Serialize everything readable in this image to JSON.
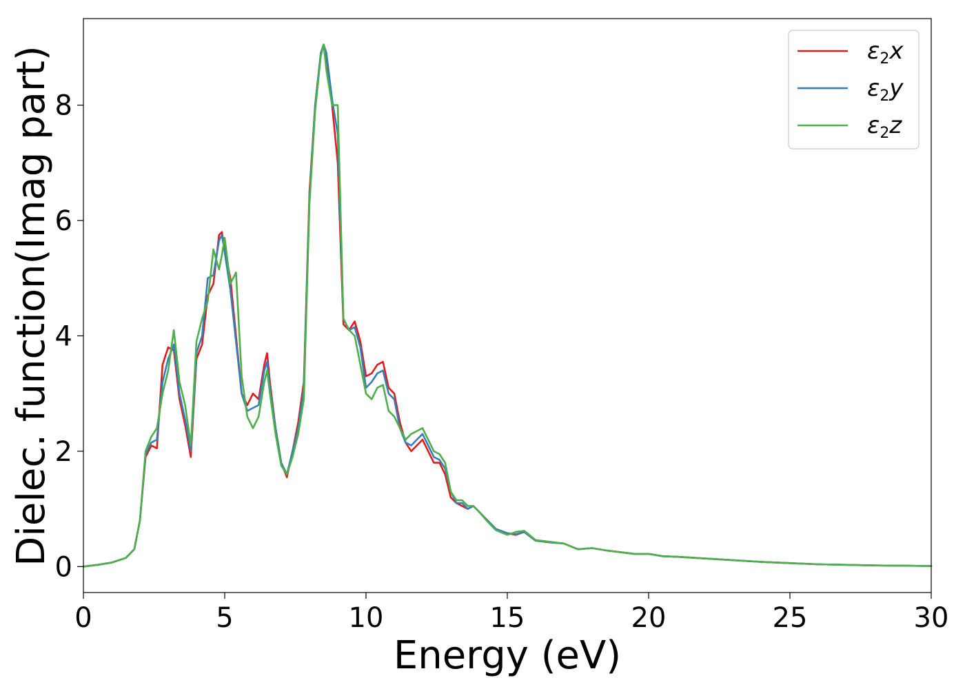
{
  "chart_data": {
    "type": "line",
    "xlabel": "Energy (eV)",
    "ylabel": "Dielec. function(Imag part)",
    "xlim": [
      0,
      30
    ],
    "ylim": [
      -0.45,
      9.5
    ],
    "xticks": [
      0,
      5,
      10,
      15,
      20,
      25,
      30
    ],
    "yticks": [
      0,
      2,
      4,
      6,
      8
    ],
    "grid": false,
    "legend": "top-right",
    "series": [
      {
        "name": "ε2x",
        "legend_base": "ε",
        "legend_sub": "2",
        "legend_var": "x",
        "color": "#e41a1c",
        "x": [
          0,
          0.5,
          1.0,
          1.5,
          1.8,
          2.0,
          2.2,
          2.4,
          2.6,
          2.8,
          3.0,
          3.2,
          3.4,
          3.6,
          3.8,
          4.0,
          4.2,
          4.4,
          4.6,
          4.8,
          4.9,
          5.0,
          5.2,
          5.4,
          5.6,
          5.8,
          6.0,
          6.2,
          6.4,
          6.5,
          6.6,
          6.8,
          7.0,
          7.2,
          7.4,
          7.6,
          7.8,
          8.0,
          8.2,
          8.4,
          8.5,
          8.6,
          8.8,
          9.0,
          9.2,
          9.4,
          9.6,
          9.8,
          10.0,
          10.2,
          10.4,
          10.6,
          10.8,
          11.0,
          11.2,
          11.4,
          11.6,
          11.8,
          12.0,
          12.2,
          12.4,
          12.6,
          12.8,
          13.0,
          13.2,
          13.4,
          13.6,
          13.8,
          14.0,
          14.3,
          14.6,
          15.0,
          15.3,
          15.6,
          16.0,
          16.5,
          17.0,
          17.5,
          18.0,
          18.5,
          19.0,
          19.5,
          20.0,
          20.5,
          21.0,
          22.0,
          23.0,
          24.0,
          25.0,
          26.0,
          27.0,
          28.0,
          29.0,
          30.0
        ],
        "values": [
          0.0,
          0.03,
          0.07,
          0.15,
          0.3,
          0.8,
          1.9,
          2.1,
          2.05,
          3.5,
          3.8,
          3.75,
          2.9,
          2.45,
          1.9,
          3.6,
          3.85,
          4.7,
          4.9,
          5.75,
          5.8,
          5.5,
          5.0,
          4.0,
          3.0,
          2.8,
          3.0,
          2.9,
          3.5,
          3.7,
          3.2,
          2.4,
          1.8,
          1.55,
          2.0,
          2.5,
          3.2,
          6.5,
          8.0,
          8.9,
          9.05,
          8.8,
          8.0,
          7.0,
          4.2,
          4.1,
          4.25,
          3.9,
          3.3,
          3.35,
          3.5,
          3.55,
          3.1,
          3.0,
          2.5,
          2.15,
          2.0,
          2.1,
          2.2,
          2.0,
          1.8,
          1.8,
          1.6,
          1.2,
          1.1,
          1.05,
          1.0,
          1.05,
          0.95,
          0.8,
          0.65,
          0.58,
          0.55,
          0.6,
          0.45,
          0.42,
          0.4,
          0.3,
          0.32,
          0.28,
          0.25,
          0.22,
          0.22,
          0.18,
          0.17,
          0.14,
          0.11,
          0.08,
          0.06,
          0.04,
          0.03,
          0.02,
          0.015,
          0.01
        ]
      },
      {
        "name": "ε2y",
        "legend_base": "ε",
        "legend_sub": "2",
        "legend_var": "y",
        "color": "#377eb8",
        "x": [
          0,
          0.5,
          1.0,
          1.5,
          1.8,
          2.0,
          2.2,
          2.4,
          2.6,
          2.8,
          3.0,
          3.2,
          3.4,
          3.6,
          3.8,
          4.0,
          4.2,
          4.4,
          4.6,
          4.8,
          4.9,
          5.0,
          5.2,
          5.4,
          5.6,
          5.8,
          6.0,
          6.2,
          6.4,
          6.5,
          6.6,
          6.8,
          7.0,
          7.2,
          7.4,
          7.6,
          7.8,
          8.0,
          8.2,
          8.4,
          8.5,
          8.6,
          8.8,
          9.0,
          9.2,
          9.4,
          9.6,
          9.8,
          10.0,
          10.2,
          10.4,
          10.6,
          10.8,
          11.0,
          11.2,
          11.4,
          11.6,
          11.8,
          12.0,
          12.2,
          12.4,
          12.6,
          12.8,
          13.0,
          13.2,
          13.4,
          13.6,
          13.8,
          14.0,
          14.3,
          14.6,
          15.0,
          15.3,
          15.6,
          16.0,
          16.5,
          17.0,
          17.5,
          18.0,
          18.5,
          19.0,
          19.5,
          20.0,
          20.5,
          21.0,
          22.0,
          23.0,
          24.0,
          25.0,
          26.0,
          27.0,
          28.0,
          29.0,
          30.0
        ],
        "values": [
          0.0,
          0.03,
          0.07,
          0.15,
          0.3,
          0.8,
          1.95,
          2.15,
          2.2,
          3.2,
          3.6,
          3.85,
          3.0,
          2.55,
          2.0,
          3.7,
          4.0,
          5.0,
          5.05,
          5.65,
          5.75,
          5.45,
          4.8,
          3.9,
          3.0,
          2.7,
          2.75,
          2.8,
          3.4,
          3.55,
          3.1,
          2.4,
          1.8,
          1.6,
          2.0,
          2.4,
          3.1,
          6.4,
          8.0,
          8.9,
          9.05,
          8.9,
          8.1,
          7.5,
          4.3,
          4.1,
          4.15,
          3.8,
          3.1,
          3.2,
          3.35,
          3.4,
          3.0,
          2.9,
          2.4,
          2.15,
          2.1,
          2.2,
          2.3,
          2.1,
          1.9,
          1.85,
          1.7,
          1.3,
          1.1,
          1.1,
          1.0,
          1.05,
          0.95,
          0.8,
          0.65,
          0.58,
          0.56,
          0.6,
          0.45,
          0.42,
          0.4,
          0.3,
          0.32,
          0.28,
          0.25,
          0.22,
          0.22,
          0.18,
          0.17,
          0.14,
          0.11,
          0.08,
          0.06,
          0.04,
          0.03,
          0.02,
          0.015,
          0.01
        ]
      },
      {
        "name": "ε2z",
        "legend_base": "ε",
        "legend_sub": "2",
        "legend_var": "z",
        "color": "#4daf4a",
        "x": [
          0,
          0.5,
          1.0,
          1.5,
          1.8,
          2.0,
          2.2,
          2.4,
          2.6,
          2.8,
          3.0,
          3.2,
          3.4,
          3.6,
          3.8,
          4.0,
          4.2,
          4.4,
          4.6,
          4.8,
          4.9,
          5.0,
          5.2,
          5.4,
          5.6,
          5.8,
          6.0,
          6.2,
          6.4,
          6.5,
          6.6,
          6.8,
          7.0,
          7.2,
          7.4,
          7.6,
          7.8,
          8.0,
          8.2,
          8.4,
          8.5,
          8.6,
          8.8,
          9.0,
          9.2,
          9.4,
          9.6,
          9.8,
          10.0,
          10.2,
          10.4,
          10.6,
          10.8,
          11.0,
          11.2,
          11.4,
          11.6,
          11.8,
          12.0,
          12.2,
          12.4,
          12.6,
          12.8,
          13.0,
          13.2,
          13.4,
          13.6,
          13.8,
          14.0,
          14.3,
          14.6,
          15.0,
          15.3,
          15.6,
          16.0,
          16.5,
          17.0,
          17.5,
          18.0,
          18.5,
          19.0,
          19.5,
          20.0,
          20.5,
          21.0,
          22.0,
          23.0,
          24.0,
          25.0,
          26.0,
          27.0,
          28.0,
          29.0,
          30.0
        ],
        "values": [
          0.0,
          0.03,
          0.07,
          0.15,
          0.3,
          0.8,
          2.0,
          2.25,
          2.4,
          3.0,
          3.4,
          4.1,
          3.2,
          2.8,
          2.1,
          3.9,
          4.3,
          4.6,
          5.5,
          5.15,
          5.4,
          5.7,
          4.9,
          5.1,
          3.3,
          2.6,
          2.4,
          2.6,
          3.2,
          3.4,
          3.0,
          2.3,
          1.75,
          1.6,
          1.9,
          2.3,
          2.9,
          6.3,
          7.9,
          8.85,
          9.05,
          8.6,
          8.0,
          8.0,
          4.3,
          4.1,
          4.0,
          3.5,
          3.0,
          2.9,
          3.1,
          3.15,
          2.7,
          2.6,
          2.4,
          2.2,
          2.3,
          2.35,
          2.4,
          2.2,
          2.0,
          1.95,
          1.8,
          1.3,
          1.15,
          1.15,
          1.05,
          1.05,
          0.95,
          0.78,
          0.63,
          0.55,
          0.6,
          0.62,
          0.46,
          0.43,
          0.4,
          0.3,
          0.32,
          0.28,
          0.25,
          0.22,
          0.22,
          0.18,
          0.17,
          0.14,
          0.11,
          0.08,
          0.06,
          0.04,
          0.03,
          0.02,
          0.015,
          0.01
        ]
      }
    ]
  }
}
